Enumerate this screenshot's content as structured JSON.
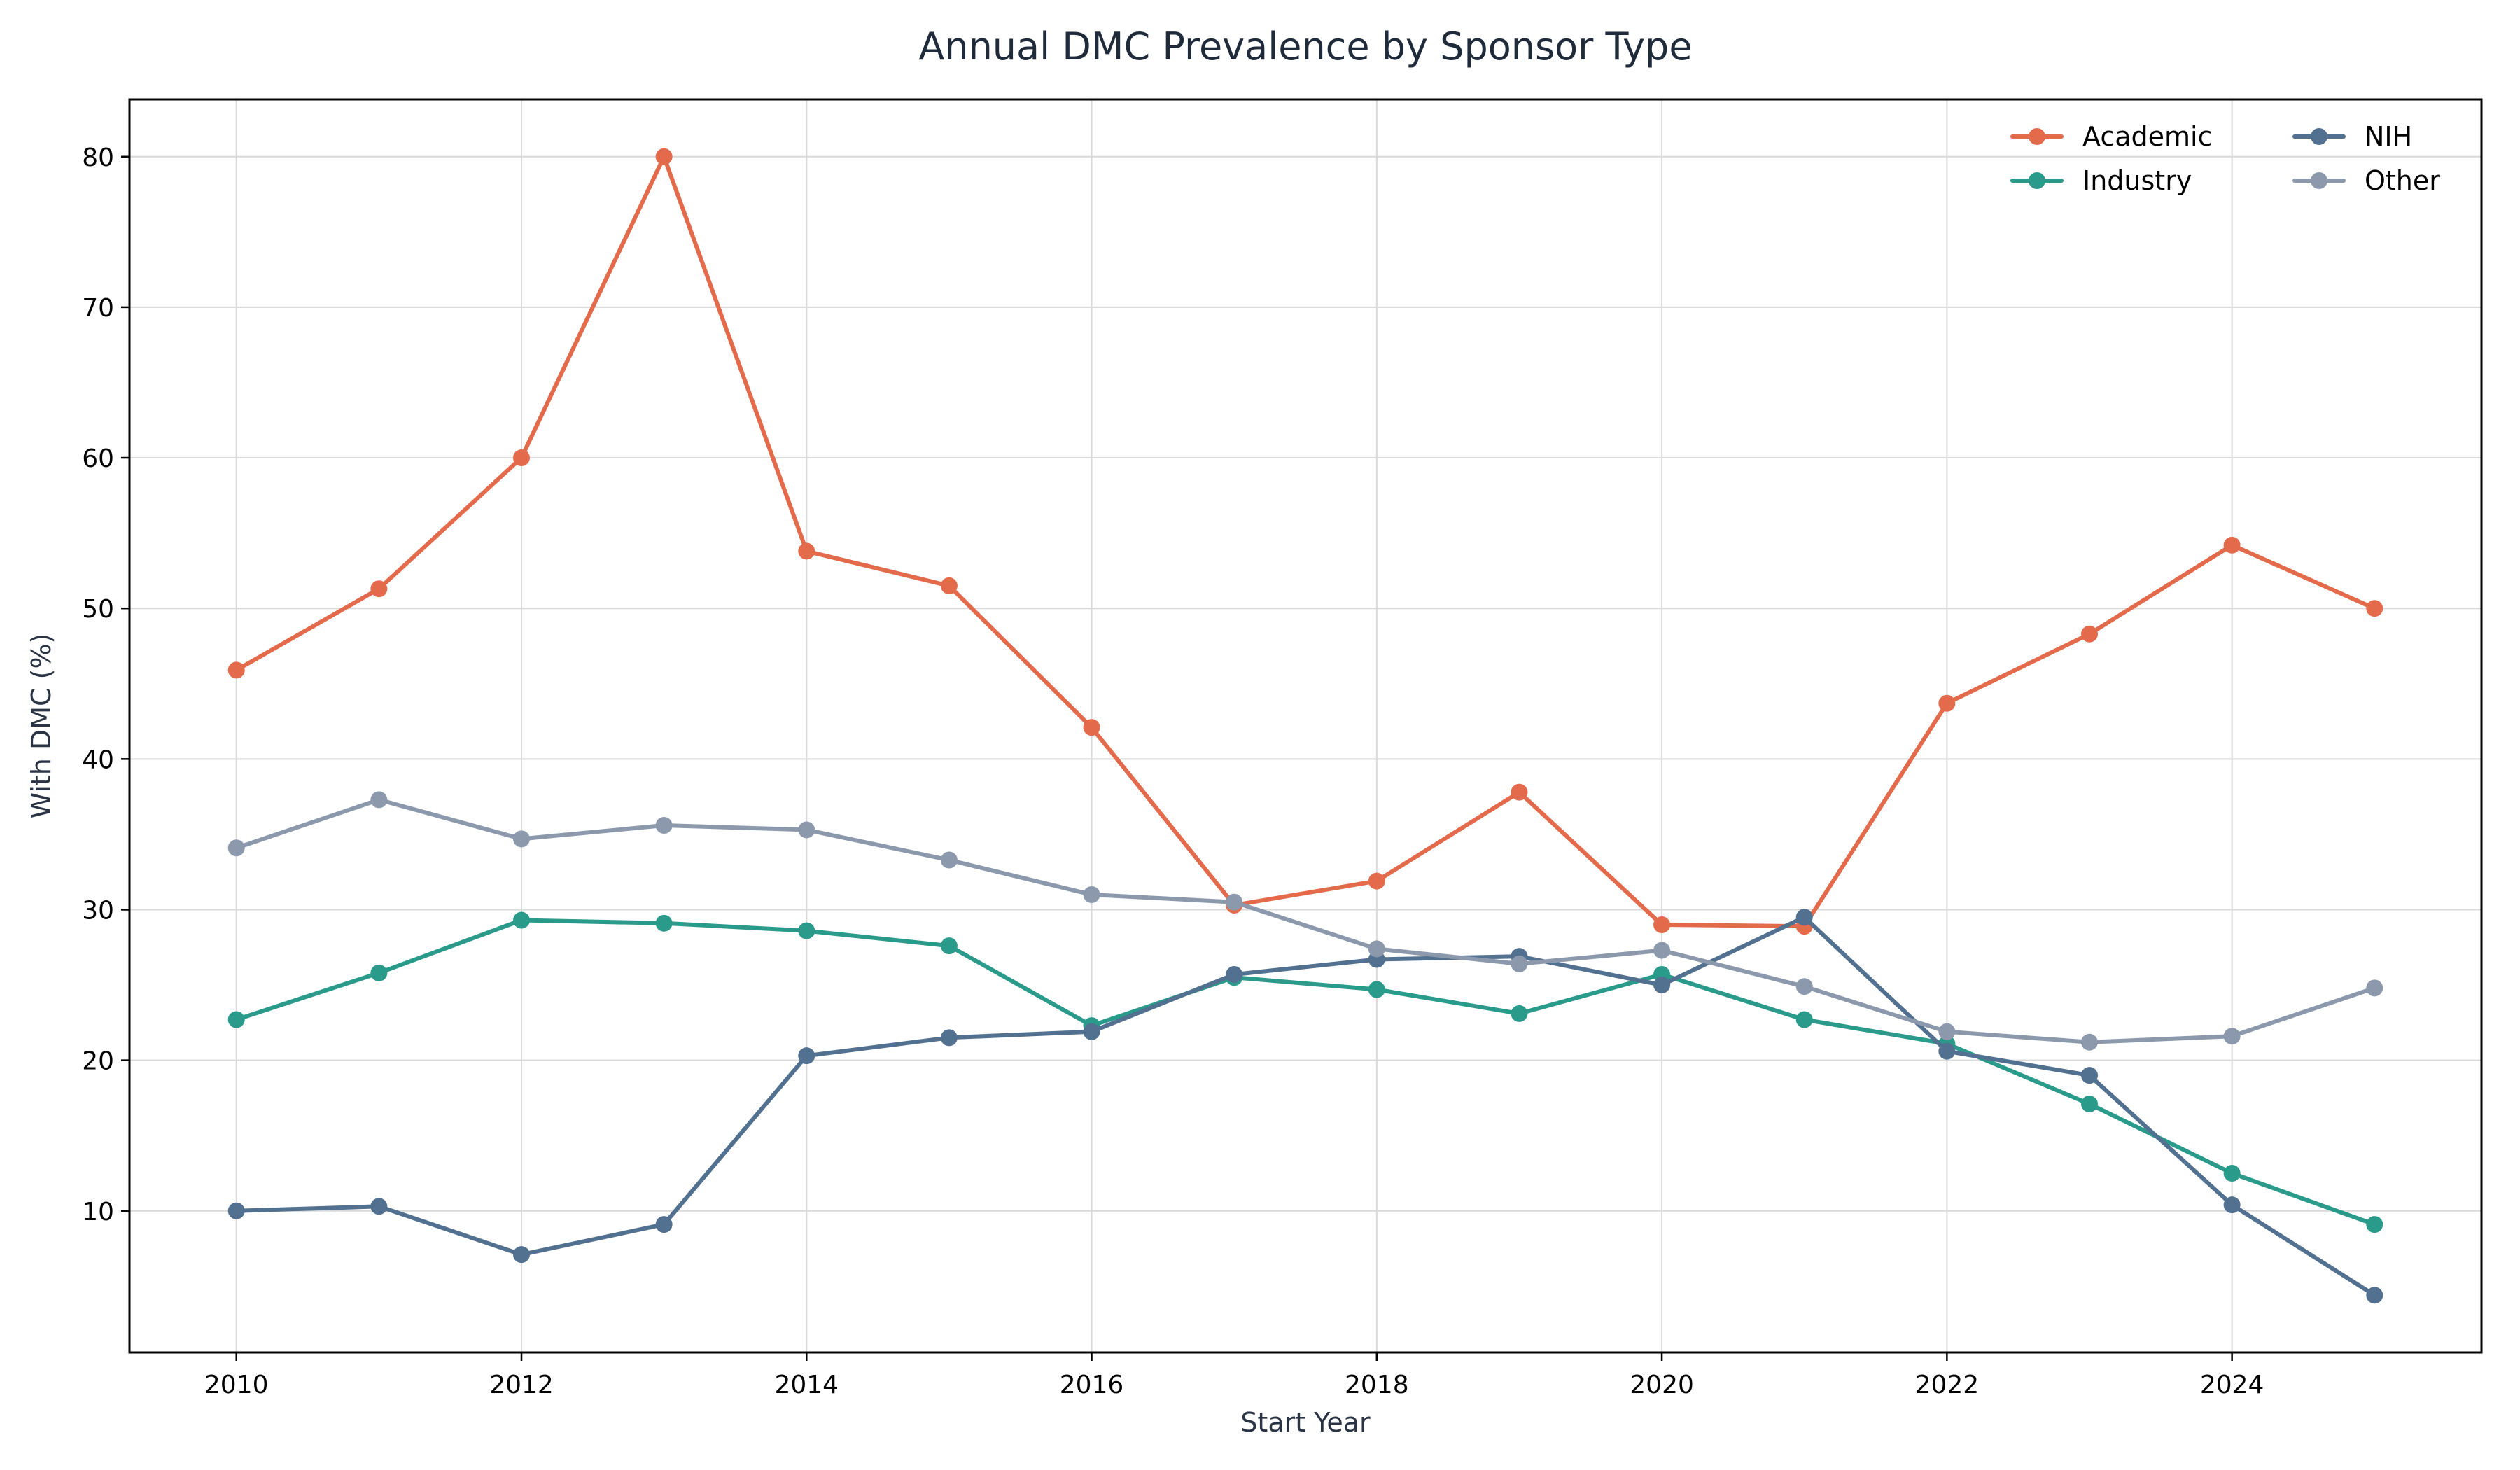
{
  "chart_data": {
    "type": "line",
    "title": "Annual DMC Prevalence by Sponsor Type",
    "xlabel": "Start Year",
    "ylabel": "With DMC (%)",
    "x": [
      2010,
      2011,
      2012,
      2013,
      2014,
      2015,
      2016,
      2017,
      2018,
      2019,
      2020,
      2021,
      2022,
      2023,
      2024,
      2025
    ],
    "xlim": [
      2009.25,
      2025.75
    ],
    "ylim": [
      0.6,
      83.8
    ],
    "xticks": [
      2010,
      2012,
      2014,
      2016,
      2018,
      2020,
      2022,
      2024
    ],
    "yticks": [
      10,
      20,
      30,
      40,
      50,
      60,
      70,
      80
    ],
    "grid": true,
    "legend": {
      "placement": "top-right",
      "columns": 2
    },
    "series": [
      {
        "name": "Academic",
        "color": "#e36b4c",
        "values": [
          45.9,
          51.3,
          60.0,
          80.0,
          53.8,
          51.5,
          42.1,
          30.3,
          31.9,
          37.8,
          29.0,
          28.9,
          43.7,
          48.3,
          54.2,
          50.0
        ]
      },
      {
        "name": "Industry",
        "color": "#2a9a8a",
        "values": [
          22.7,
          25.8,
          29.3,
          29.1,
          28.6,
          27.6,
          22.3,
          25.5,
          24.7,
          23.1,
          25.7,
          22.7,
          21.1,
          17.1,
          12.5,
          9.1
        ]
      },
      {
        "name": "NIH",
        "color": "#52708f",
        "values": [
          10.0,
          10.3,
          7.1,
          9.1,
          20.3,
          21.5,
          21.9,
          25.7,
          26.7,
          26.9,
          25.0,
          29.5,
          20.6,
          19.0,
          10.4,
          4.4
        ]
      },
      {
        "name": "Other",
        "color": "#8c99ad",
        "values": [
          34.1,
          37.3,
          34.7,
          35.6,
          35.3,
          33.3,
          31.0,
          30.5,
          27.4,
          26.4,
          27.3,
          24.9,
          21.9,
          21.2,
          21.6,
          24.8
        ]
      }
    ]
  }
}
